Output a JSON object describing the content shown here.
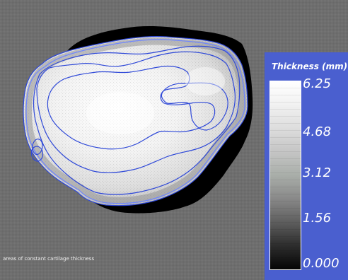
{
  "scene": {
    "caption": "areas of constant cartilage thickness",
    "colors": {
      "background": "#6e6e6e",
      "contour": "#2f49d8",
      "surface_light": "#ffffff",
      "surface_dark": "#bdbdbd",
      "shadow": "#000000"
    }
  },
  "legend": {
    "title": "Thickness (mm)",
    "panel_color": "#4a5fcf",
    "ticks": [
      "6.25",
      "4.68",
      "3.12",
      "1.56",
      "0.000"
    ],
    "range": [
      0.0,
      6.25
    ]
  }
}
